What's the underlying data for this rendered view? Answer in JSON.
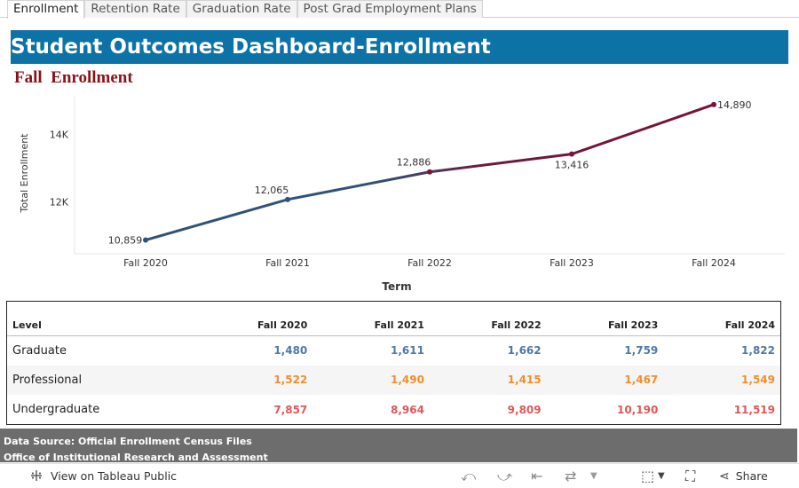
{
  "tabs": [
    "Enrollment",
    "Retention Rate",
    "Graduation Rate",
    "Post Grad Employment Plans"
  ],
  "banner_title": "Student Outcomes Dashboard-Enrollment",
  "subtitle": "Fall  Enrollment",
  "chart_data": {
    "type": "line",
    "title": "Fall  Enrollment",
    "xlabel": "Term",
    "ylabel": "Total Enrollment",
    "categories": [
      "Fall 2020",
      "Fall 2021",
      "Fall 2022",
      "Fall 2023",
      "Fall 2024"
    ],
    "values": [
      10859,
      12065,
      12886,
      13416,
      14890
    ],
    "data_labels": [
      "10,859",
      "12,065",
      "12,886",
      "13,416",
      "14,890"
    ],
    "yticks": [
      12000,
      14000
    ],
    "ytick_labels": [
      "12K",
      "14K"
    ],
    "ylim": [
      10450,
      15150
    ],
    "colors": [
      "#2f527a",
      "#7a123a"
    ]
  },
  "table": {
    "level_header": "Level",
    "columns": [
      "Fall 2020",
      "Fall 2021",
      "Fall 2022",
      "Fall 2023",
      "Fall 2024"
    ],
    "rows": [
      {
        "level": "Graduate",
        "color": "#4e79a7",
        "values": [
          "1,480",
          "1,611",
          "1,662",
          "1,759",
          "1,822"
        ]
      },
      {
        "level": "Professional",
        "color": "#f28e2b",
        "values": [
          "1,522",
          "1,490",
          "1,415",
          "1,467",
          "1,549"
        ]
      },
      {
        "level": "Undergraduate",
        "color": "#e15759",
        "values": [
          "7,857",
          "8,964",
          "9,809",
          "10,190",
          "11,519"
        ]
      }
    ]
  },
  "footer": {
    "line1": "Data Source: Official Enrollment  Census Files",
    "line2": "Office of Institutional Research and Assessment"
  },
  "toolbar": {
    "view_label": "View on Tableau Public",
    "share_label": "Share"
  }
}
